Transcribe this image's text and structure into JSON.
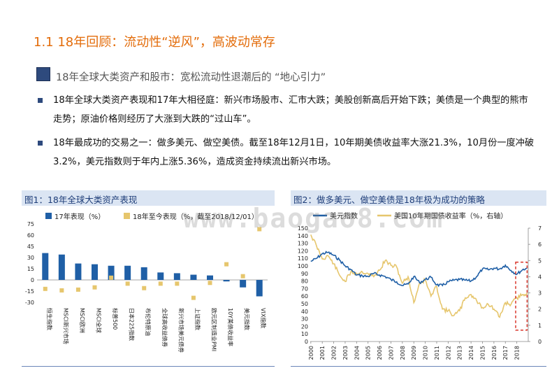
{
  "header": {
    "title": "1.1 18年回顾：流动性“逆风”，高波动常存",
    "subtitle": "18年全球大类资产和股市：宽松流动性退潮后的 “地心引力”"
  },
  "bullets": [
    "18年全球大类资产表现和17年大相径庭：新兴市场股市、汇市大跌；美股创新高后开始下跌；美债是一个典型的熊市走势；原油价格则经历了大涨到大跌的“过山车”。",
    "18年最成功的交易之一：做多美元、做空美债。截至18年12月1日，10年期美债收益率大涨21.3%，10月份一度冲破3.2%，美元指数则于年内上涨5.36%，造成资金持续流出新兴市场。"
  ],
  "watermark": "www.baogao8.com",
  "colors": {
    "title": "#e36c0a",
    "bar17": "#1f5fa6",
    "bar18": "#e6c66d",
    "usd_line": "#1f5fa6",
    "yield_line": "#e6c66d",
    "highlight": "#d9362b"
  },
  "chart_data": [
    {
      "type": "bar",
      "caption": "图1：18年全球大类资产表现",
      "categories": [
        "恒生指数",
        "MSCI新兴市场",
        "MSCI欧洲",
        "MSCI全球",
        "标普500",
        "日本225指数",
        "布伦特原油",
        "全球高收益债券",
        "新兴市场美元债券",
        "上证指数",
        "欧元区制造业PMI",
        "10Y美债收益率",
        "美元指数",
        "VIX指数"
      ],
      "series": [
        {
          "name": "17年表现（%）",
          "values": [
            36,
            34,
            22,
            21,
            19,
            19,
            17,
            10,
            9,
            7,
            6,
            -2,
            -10,
            -22
          ]
        },
        {
          "name": "18年至今表现（%，截至2018/12/01）",
          "values": [
            -12,
            -14,
            -13,
            -10,
            3,
            -5,
            -11,
            -5,
            -5,
            -24,
            -4,
            21,
            5,
            68
          ]
        }
      ],
      "ylim": [
        -30,
        75
      ],
      "yticks": [
        -30,
        -15,
        0,
        15,
        30,
        45,
        60,
        75
      ],
      "legend_position": "top"
    },
    {
      "type": "line",
      "caption": "图2：做多美元、做空美债是18年极为成功的策略",
      "x": [
        2000,
        2000.5,
        2001,
        2001.5,
        2002,
        2002.5,
        2003,
        2003.5,
        2004,
        2004.5,
        2005,
        2005.5,
        2006,
        2006.5,
        2007,
        2007.5,
        2008,
        2008.5,
        2009,
        2009.5,
        2010,
        2010.5,
        2011,
        2011.5,
        2012,
        2012.5,
        2013,
        2013.5,
        2014,
        2014.5,
        2015,
        2015.5,
        2016,
        2016.5,
        2017,
        2017.5,
        2018,
        2018.5,
        2018.9
      ],
      "series": [
        {
          "name": "美元指数",
          "axis": "left",
          "values": [
            106,
            110,
            116,
            118,
            114,
            108,
            100,
            95,
            88,
            87,
            86,
            90,
            88,
            86,
            82,
            79,
            74,
            76,
            86,
            78,
            82,
            85,
            75,
            74,
            79,
            81,
            82,
            81,
            80,
            86,
            96,
            95,
            97,
            96,
            101,
            94,
            89,
            95,
            97
          ]
        },
        {
          "name": "美国10年期国债收益率（%，右轴）",
          "axis": "right",
          "values": [
            6.6,
            5.9,
            5.1,
            5.3,
            4.8,
            4.1,
            3.7,
            4.3,
            4.2,
            4.3,
            4.2,
            4.0,
            4.4,
            5.0,
            4.7,
            4.6,
            3.6,
            4.0,
            2.4,
            3.6,
            3.8,
            2.8,
            3.4,
            2.0,
            1.9,
            1.6,
            1.9,
            2.7,
            2.9,
            2.5,
            2.1,
            2.3,
            2.0,
            1.5,
            2.4,
            2.3,
            2.7,
            2.9,
            3.0
          ]
        }
      ],
      "xticks": [
        2000,
        2001,
        2002,
        2003,
        2004,
        2005,
        2006,
        2007,
        2008,
        2009,
        2010,
        2011,
        2012,
        2013,
        2014,
        2015,
        2016,
        2017,
        2018
      ],
      "ylim_left": [
        0,
        150
      ],
      "yticks_left": [
        0,
        10,
        20,
        30,
        40,
        50,
        60,
        70,
        80,
        90,
        100,
        110,
        120,
        130,
        140,
        150
      ],
      "ylim_right": [
        0,
        7
      ],
      "yticks_right": [
        0,
        1,
        2,
        3,
        4,
        5,
        6,
        7
      ],
      "highlight_range": [
        2017.9,
        2018.9
      ],
      "legend_position": "top"
    }
  ]
}
